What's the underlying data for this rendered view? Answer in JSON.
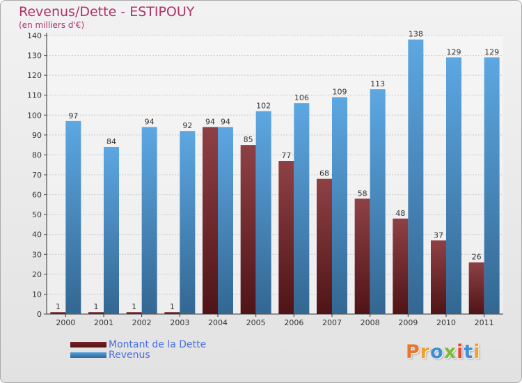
{
  "header": {
    "title": "Revenus/Dette - ESTIPOUY",
    "subtitle": "(en milliers d'€)"
  },
  "chart_data": {
    "type": "bar",
    "title": "Revenus/Dette - ESTIPOUY",
    "ylabel": "(en milliers d'€)",
    "xlabel": "",
    "categories": [
      "2000",
      "2001",
      "2002",
      "2003",
      "2004",
      "2005",
      "2006",
      "2007",
      "2008",
      "2009",
      "2010",
      "2011"
    ],
    "series": [
      {
        "name": "Montant de la Dette",
        "color": "#7a1f24",
        "values": [
          1,
          1,
          1,
          1,
          94,
          85,
          77,
          68,
          58,
          48,
          37,
          26
        ]
      },
      {
        "name": "Revenus",
        "color": "#4f9fe0",
        "values": [
          97,
          84,
          94,
          92,
          94,
          102,
          106,
          109,
          113,
          138,
          129,
          129
        ]
      }
    ],
    "ylim": [
      0,
      140
    ],
    "yticks": [
      0,
      10,
      20,
      30,
      40,
      50,
      60,
      70,
      80,
      90,
      100,
      110,
      120,
      130,
      140
    ],
    "grid": true,
    "legend_position": "bottom-left"
  },
  "legend": {
    "items": [
      {
        "label": "Montant de la Dette",
        "color": "#7a1f24"
      },
      {
        "label": "Revenus",
        "color": "#4f9fe0"
      }
    ]
  },
  "logo": {
    "text": "Proxiti",
    "letter_colors": [
      "#e8762b",
      "#f0a030",
      "#3b8fd8",
      "#7dbb35",
      "#e8452c",
      "#3b8fd8",
      "#f0a030"
    ]
  }
}
